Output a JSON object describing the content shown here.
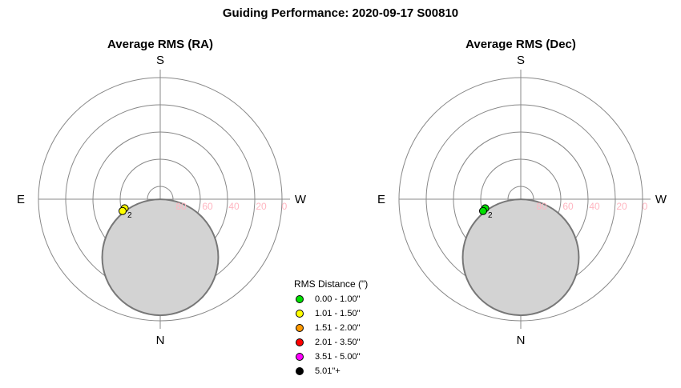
{
  "title": "Guiding Performance: 2020-09-17 S00810",
  "chart_data": [
    {
      "type": "polar-scatter",
      "title": "Average RMS (RA)",
      "directions": {
        "top": "S",
        "bottom": "N",
        "left": "E",
        "right": "W"
      },
      "altitude_ticks": [
        "80",
        "60",
        "40",
        "20",
        "0"
      ],
      "altitude_range": [
        0,
        90
      ],
      "obscured_zone": {
        "azimuth_deg": 0,
        "altitude_deg": 47,
        "diameter_deg": 26,
        "color": "#d3d3d3"
      },
      "points": [
        {
          "label": "",
          "azimuth_deg": 115,
          "altitude_deg": 61,
          "rms_arcsec": 1.2
        },
        {
          "label": "2",
          "azimuth_deg": 116,
          "altitude_deg": 61,
          "rms_arcsec": 1.2
        }
      ]
    },
    {
      "type": "polar-scatter",
      "title": "Average RMS (Dec)",
      "directions": {
        "top": "S",
        "bottom": "N",
        "left": "E",
        "right": "W"
      },
      "altitude_ticks": [
        "80",
        "60",
        "40",
        "20",
        "0"
      ],
      "altitude_range": [
        0,
        90
      ],
      "obscured_zone": {
        "azimuth_deg": 0,
        "altitude_deg": 47,
        "diameter_deg": 26,
        "color": "#d3d3d3"
      },
      "points": [
        {
          "label": "",
          "azimuth_deg": 115,
          "altitude_deg": 61,
          "rms_arcsec": 0.8
        },
        {
          "label": "2",
          "azimuth_deg": 116,
          "altitude_deg": 61,
          "rms_arcsec": 0.8
        }
      ]
    }
  ],
  "legend": {
    "title": "RMS Distance (\")",
    "items": [
      {
        "label": "0.00 - 1.00\"",
        "color": "#00e000"
      },
      {
        "label": "1.01 - 1.50\"",
        "color": "#ffff00"
      },
      {
        "label": "1.51 - 2.00\"",
        "color": "#ff9900"
      },
      {
        "label": "2.01 - 3.50\"",
        "color": "#ff0000"
      },
      {
        "label": "3.51 - 5.00\"",
        "color": "#ff00ff"
      },
      {
        "label": "5.01\"+",
        "color": "#000000"
      }
    ]
  }
}
